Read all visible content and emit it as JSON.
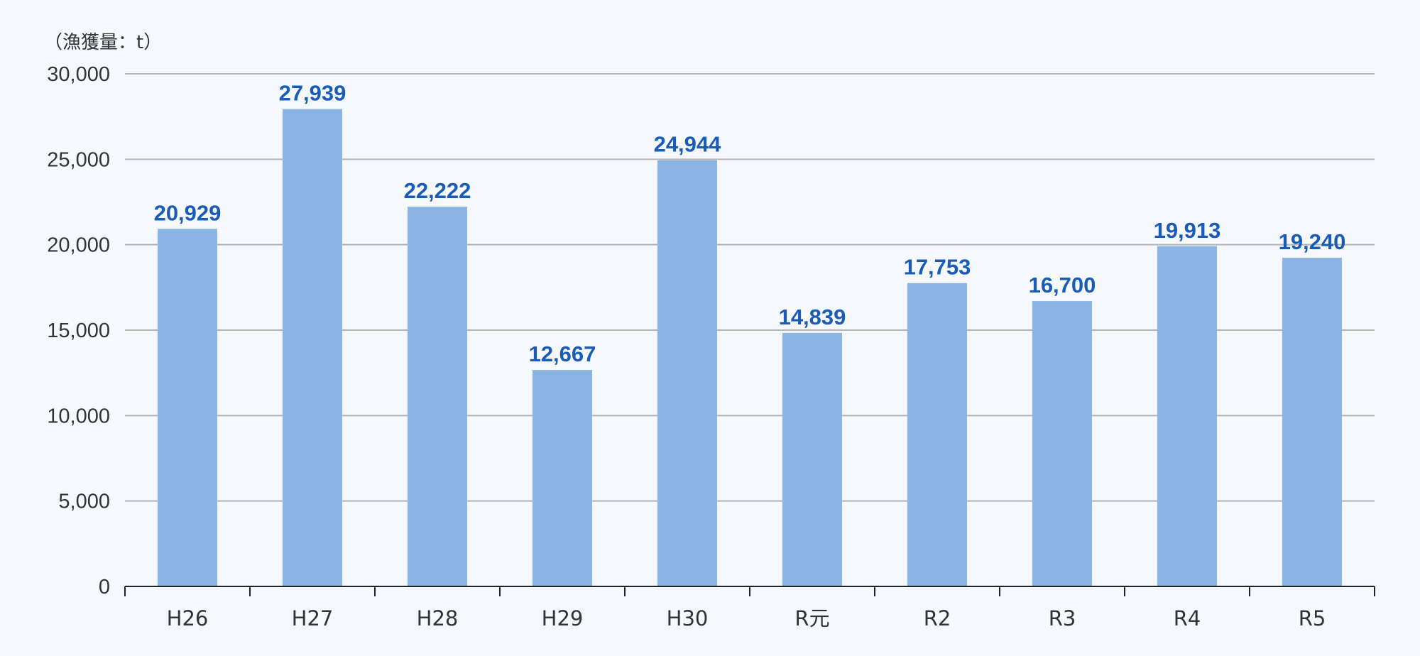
{
  "chart_data": {
    "type": "bar",
    "title": "",
    "unit_label": "（漁獲量：t）",
    "xlabel": "",
    "ylabel": "",
    "categories": [
      "H26",
      "H27",
      "H28",
      "H29",
      "H30",
      "R元",
      "R2",
      "R3",
      "R4",
      "R5"
    ],
    "values": [
      20929,
      27939,
      22222,
      12667,
      24944,
      14839,
      17753,
      16700,
      19913,
      19240
    ],
    "data_labels": [
      "20,929",
      "27,939",
      "22,222",
      "12,667",
      "24,944",
      "14,839",
      "17,753",
      "16,700",
      "19,913",
      "19,240"
    ],
    "ylim": [
      0,
      30000
    ],
    "yticks": [
      0,
      5000,
      10000,
      15000,
      20000,
      25000,
      30000
    ],
    "ytick_labels": [
      "0",
      "5,000",
      "10,000",
      "15,000",
      "20,000",
      "25,000",
      "30,000"
    ],
    "grid": true,
    "legend": "none",
    "colors": {
      "bar": "#8ab4e4",
      "data_label": "#1a5bb8",
      "grid": "#b4b4b4",
      "axis": "#222222",
      "text": "#333333",
      "background": "#f5f9fd"
    }
  }
}
